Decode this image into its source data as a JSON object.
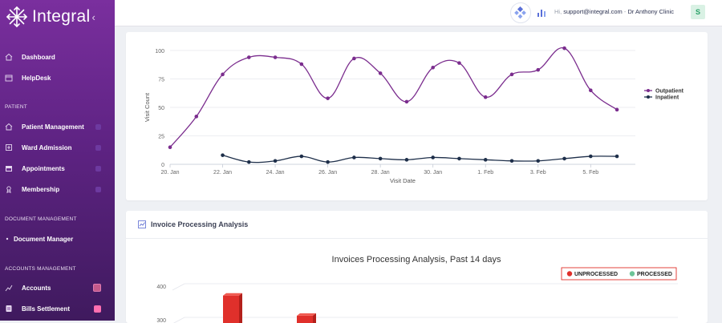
{
  "brand": {
    "name": "Integral",
    "collapse_icon": "chevron-left-icon"
  },
  "sidebar": {
    "items_top": [
      {
        "label": "Dashboard",
        "icon": "home-icon"
      },
      {
        "label": "HelpDesk",
        "icon": "calendar-icon"
      }
    ],
    "section_patient": "PATIENT",
    "items_patient": [
      {
        "label": "Patient Management",
        "icon": "home-icon"
      },
      {
        "label": "Ward Admission",
        "icon": "ward-icon"
      },
      {
        "label": "Appointments",
        "icon": "calendar-icon"
      },
      {
        "label": "Membership",
        "icon": "membership-icon"
      }
    ],
    "section_document": "DOCUMENT MANAGEMENT",
    "items_document": [
      {
        "label": "Document Manager"
      }
    ],
    "section_accounts": "ACCOUNTS MANAGEMENT",
    "items_accounts": [
      {
        "label": "Accounts",
        "icon": "chart-icon"
      },
      {
        "label": "Bills Settlement",
        "icon": "bills-icon"
      }
    ]
  },
  "header": {
    "greeting": "Hi,",
    "email": "support@integral.com",
    "separator": "-",
    "clinic": "Dr Anthony Clinic",
    "avatar_initial": "S"
  },
  "visit_chart": {
    "chart_data": {
      "type": "line",
      "xlabel": "Visit Date",
      "ylabel": "Visit Count",
      "ylim": [
        0,
        100
      ],
      "yticks": [
        0,
        25,
        50,
        75,
        100
      ],
      "xtick_labels": [
        "20. Jan",
        "22. Jan",
        "24. Jan",
        "26. Jan",
        "28. Jan",
        "30. Jan",
        "1. Feb",
        "3. Feb",
        "5. Feb"
      ],
      "legend_position": "right",
      "series": [
        {
          "name": "Outpatient",
          "color": "#7b2d8e",
          "points": [
            [
              "20 Jan",
              15
            ],
            [
              "21 Jan",
              42
            ],
            [
              "22 Jan",
              79
            ],
            [
              "23 Jan",
              94
            ],
            [
              "24 Jan",
              94
            ],
            [
              "25 Jan",
              88
            ],
            [
              "26 Jan",
              58
            ],
            [
              "27 Jan",
              93
            ],
            [
              "28 Jan",
              80
            ],
            [
              "29 Jan",
              55
            ],
            [
              "30 Jan",
              85
            ],
            [
              "31 Jan",
              89
            ],
            [
              "1 Feb",
              59
            ],
            [
              "2 Feb",
              79
            ],
            [
              "3 Feb",
              83
            ],
            [
              "4 Feb",
              102
            ],
            [
              "5 Feb",
              65
            ],
            [
              "6 Feb",
              48
            ]
          ]
        },
        {
          "name": "Inpatient",
          "color": "#1e2f4a",
          "points": [
            [
              "22 Jan",
              8
            ],
            [
              "23 Jan",
              2
            ],
            [
              "24 Jan",
              3
            ],
            [
              "25 Jan",
              7
            ],
            [
              "26 Jan",
              2
            ],
            [
              "27 Jan",
              6
            ],
            [
              "28 Jan",
              5
            ],
            [
              "29 Jan",
              4
            ],
            [
              "30 Jan",
              6
            ],
            [
              "31 Jan",
              5
            ],
            [
              "1 Feb",
              4
            ],
            [
              "2 Feb",
              3
            ],
            [
              "3 Feb",
              3
            ],
            [
              "4 Feb",
              5
            ],
            [
              "5 Feb",
              7
            ],
            [
              "6 Feb",
              7
            ]
          ]
        }
      ]
    }
  },
  "invoice_card": {
    "title": "Invoice Processing Analysis",
    "icon": "chart-icon",
    "chart_data": {
      "type": "bar",
      "title": "Invoices Processing Analysis, Past 14 days",
      "yticks_visible": [
        300,
        400
      ],
      "legend_position": "top-right",
      "series": [
        {
          "name": "UNPROCESSED",
          "color": "#e0302b"
        },
        {
          "name": "PROCESSED",
          "color": "#6cc497"
        }
      ],
      "visible_bar_tops": [
        {
          "series": "UNPROCESSED",
          "value": 365
        },
        {
          "series": "UNPROCESSED",
          "value": 305
        }
      ]
    }
  }
}
